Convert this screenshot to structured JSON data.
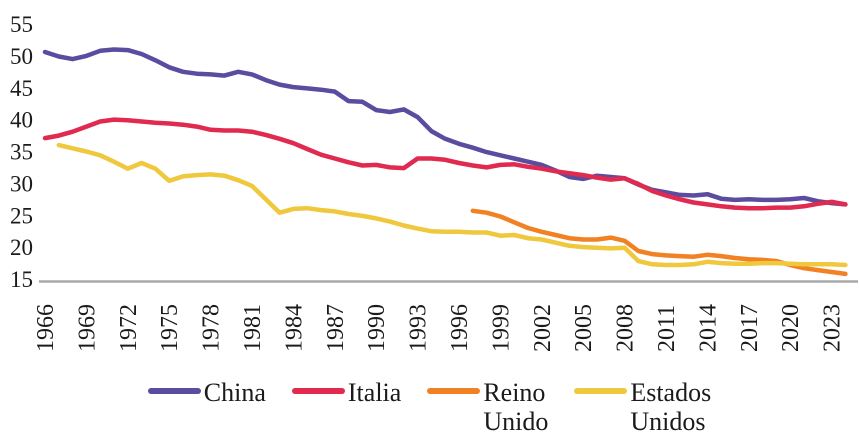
{
  "figure": {
    "background_color": "#ffffff",
    "axis_line_color": "#a9a9a9",
    "text_color": "#1a1a1a"
  },
  "chart_data": {
    "type": "line",
    "title": "",
    "xlabel": "",
    "ylabel": "",
    "x_range": [
      1966,
      2024
    ],
    "ylim": [
      15,
      55
    ],
    "grid": false,
    "legend_position": "bottom",
    "yticks": [
      55,
      50,
      45,
      40,
      35,
      30,
      25,
      20,
      15
    ],
    "xticks": [
      1966,
      1969,
      1972,
      1975,
      1978,
      1981,
      1984,
      1987,
      1990,
      1993,
      1996,
      1999,
      2002,
      2005,
      2008,
      2011,
      2014,
      2017,
      2020,
      2023
    ],
    "series": [
      {
        "name": "China",
        "legend_lines": [
          "China"
        ],
        "color": "#5B4CA0",
        "start_year": 1966,
        "values": [
          50.6,
          49.9,
          49.5,
          50.0,
          50.8,
          51.0,
          50.9,
          50.3,
          49.3,
          48.2,
          47.5,
          47.2,
          47.1,
          46.9,
          47.5,
          47.1,
          46.2,
          45.5,
          45.1,
          44.9,
          44.7,
          44.4,
          42.9,
          42.8,
          41.5,
          41.2,
          41.6,
          40.4,
          38.2,
          37.0,
          36.2,
          35.6,
          34.9,
          34.4,
          33.9,
          33.4,
          32.9,
          32.0,
          31.0,
          30.7,
          31.2,
          31.0,
          30.8,
          29.8,
          29.0,
          28.6,
          28.2,
          28.1,
          28.3,
          27.6,
          27.4,
          27.5,
          27.4,
          27.4,
          27.5,
          27.7,
          27.2,
          26.9,
          26.7
        ]
      },
      {
        "name": "Italia",
        "legend_lines": [
          "Italia"
        ],
        "color": "#E02A4F",
        "start_year": 1966,
        "values": [
          37.1,
          37.5,
          38.1,
          38.9,
          39.7,
          40.0,
          39.9,
          39.7,
          39.5,
          39.4,
          39.2,
          38.9,
          38.4,
          38.3,
          38.3,
          38.1,
          37.6,
          37.0,
          36.3,
          35.4,
          34.5,
          33.9,
          33.3,
          32.8,
          32.9,
          32.5,
          32.4,
          33.9,
          33.9,
          33.7,
          33.2,
          32.8,
          32.5,
          32.9,
          33.0,
          32.6,
          32.3,
          31.9,
          31.6,
          31.3,
          30.9,
          30.6,
          30.8,
          29.9,
          28.8,
          28.1,
          27.5,
          27.0,
          26.7,
          26.4,
          26.2,
          26.1,
          26.1,
          26.2,
          26.2,
          26.4,
          26.8,
          27.1,
          26.7
        ]
      },
      {
        "name": "Reino Unido",
        "legend_lines": [
          "Reino",
          "Unido"
        ],
        "color": "#F28124",
        "start_year": 1997,
        "values": [
          25.7,
          25.4,
          24.8,
          23.9,
          23.0,
          22.4,
          21.9,
          21.4,
          21.2,
          21.2,
          21.5,
          21.0,
          19.4,
          18.9,
          18.7,
          18.6,
          18.5,
          18.8,
          18.6,
          18.3,
          18.1,
          18.0,
          17.8,
          17.2,
          16.7,
          16.4,
          16.1,
          15.8
        ]
      },
      {
        "name": "Estados Unidos",
        "legend_lines": [
          "Estados",
          "Unidos"
        ],
        "color": "#EFC83E",
        "start_year": 1967,
        "values": [
          36.0,
          35.5,
          35.0,
          34.4,
          33.4,
          32.3,
          33.2,
          32.3,
          30.4,
          31.1,
          31.3,
          31.4,
          31.2,
          30.5,
          29.6,
          27.5,
          25.4,
          26.0,
          26.1,
          25.8,
          25.6,
          25.2,
          24.9,
          24.5,
          24.0,
          23.4,
          22.9,
          22.5,
          22.4,
          22.4,
          22.3,
          22.3,
          21.8,
          21.9,
          21.4,
          21.2,
          20.7,
          20.2,
          20.0,
          19.9,
          19.8,
          19.9,
          17.8,
          17.3,
          17.2,
          17.2,
          17.3,
          17.7,
          17.5,
          17.4,
          17.4,
          17.5,
          17.5,
          17.4,
          17.3,
          17.3,
          17.3,
          17.2
        ]
      }
    ]
  }
}
